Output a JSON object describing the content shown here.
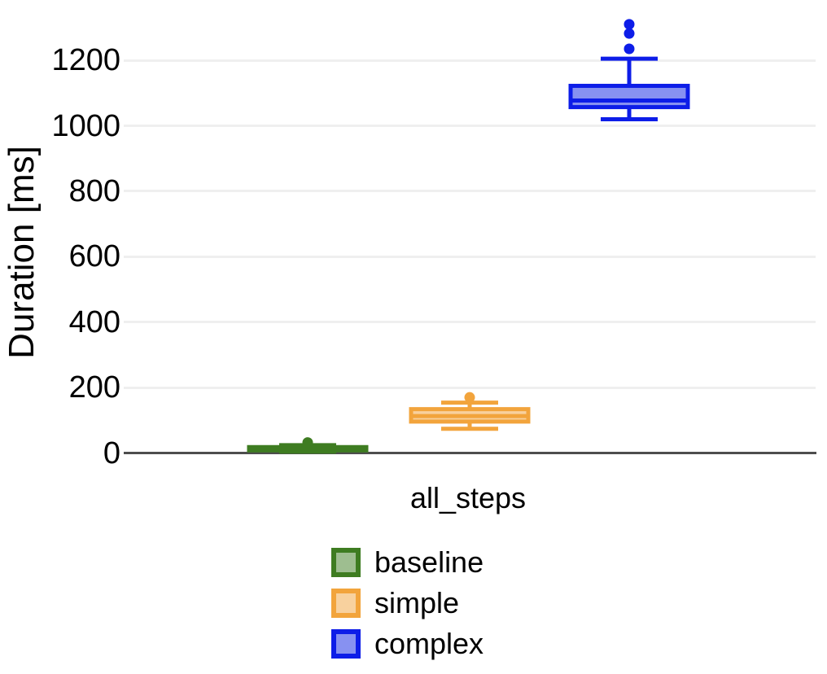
{
  "chart_data": {
    "type": "boxplot",
    "title": "",
    "xlabel": "",
    "ylabel": "Duration [ms]",
    "unit": "ms",
    "categories": [
      "all_steps"
    ],
    "yticks": [
      0,
      200,
      400,
      600,
      800,
      1000,
      1200
    ],
    "ylim": [
      0,
      1380
    ],
    "grid": "horizontal-only",
    "legend_position": "bottom-left",
    "axis_line_color": "#4d4d4d",
    "gridline_color": "#efefef",
    "series": [
      {
        "name": "baseline",
        "stroke": "#3e7c21",
        "fill": "#9ebe90",
        "category": "all_steps",
        "stats": {
          "min": 4,
          "q1": 8,
          "median": 14,
          "q3": 18,
          "max": 24,
          "outliers": [
            32
          ]
        }
      },
      {
        "name": "simple",
        "stroke": "#f2a43c",
        "fill": "#f8d19e",
        "category": "all_steps",
        "stats": {
          "min": 74,
          "q1": 96,
          "median": 113,
          "q3": 134,
          "max": 154,
          "outliers": [
            170
          ]
        }
      },
      {
        "name": "complex",
        "stroke": "#0d1de8",
        "fill": "#8791f1",
        "category": "all_steps",
        "stats": {
          "min": 1020,
          "q1": 1057,
          "median": 1077,
          "q3": 1122,
          "max": 1205,
          "outliers": [
            1235,
            1282,
            1310
          ]
        }
      }
    ]
  }
}
